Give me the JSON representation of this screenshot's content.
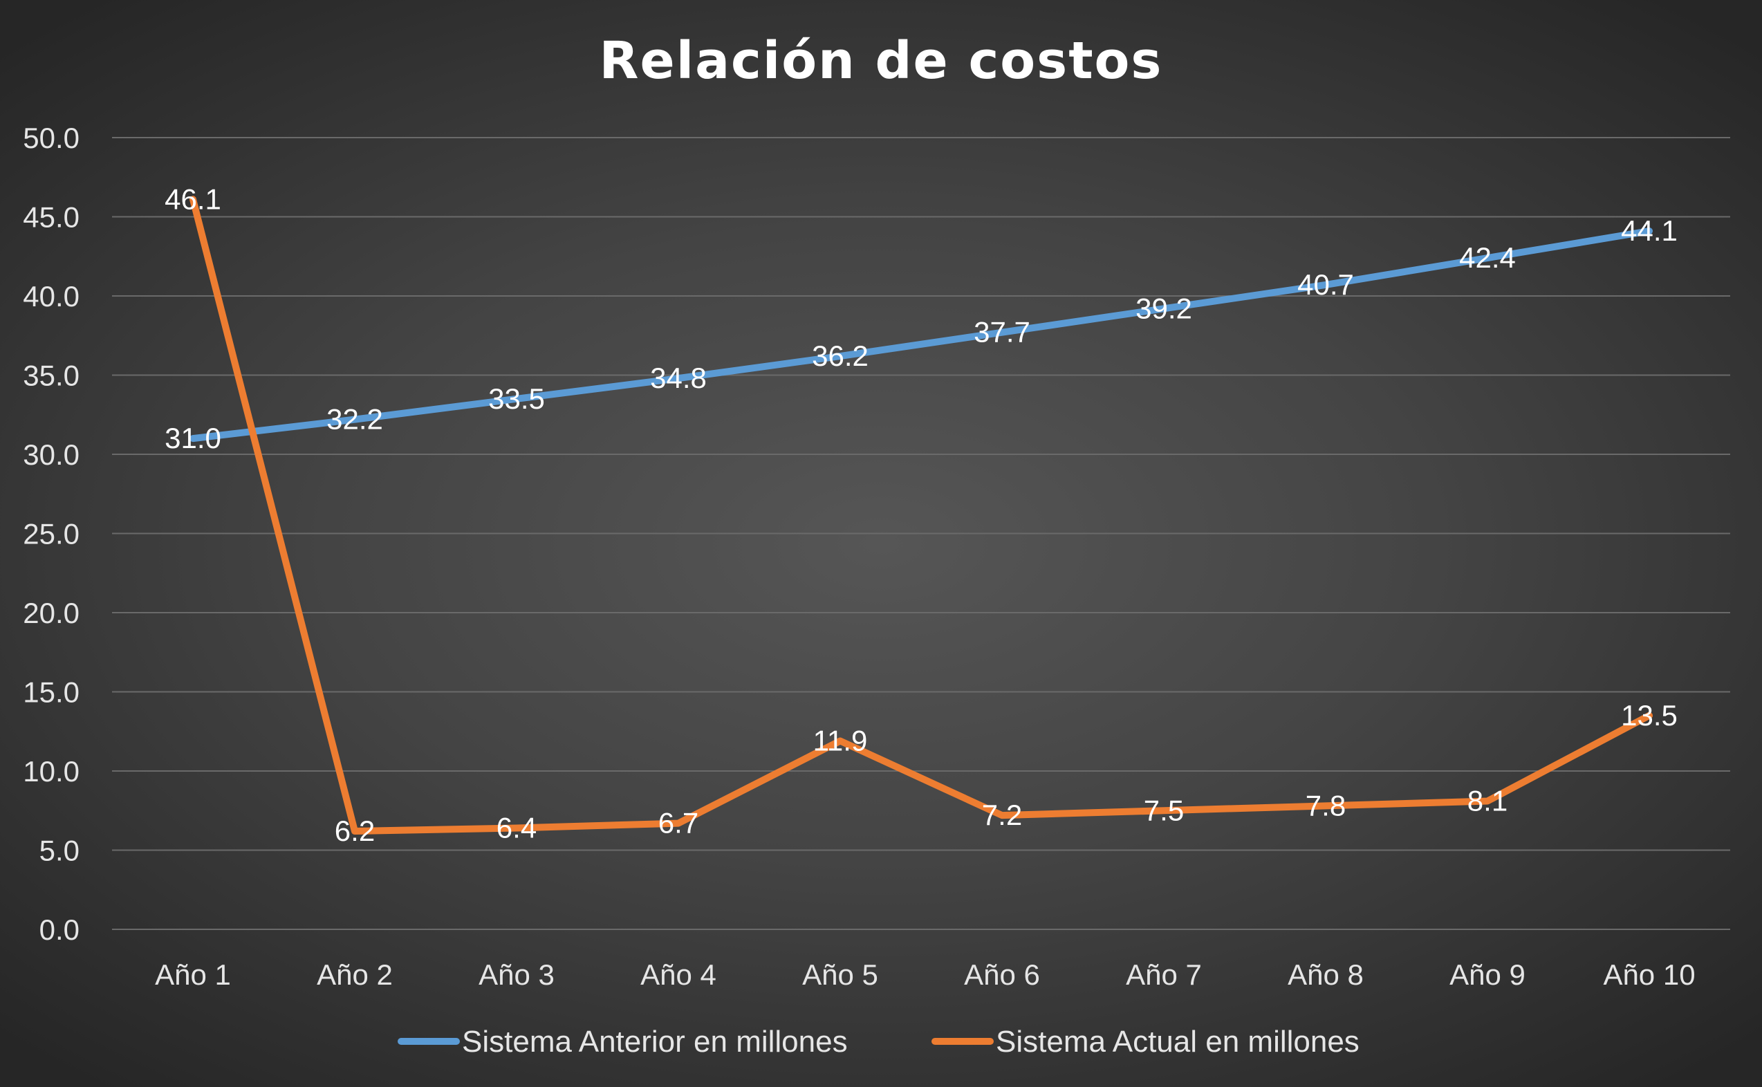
{
  "chart_data": {
    "type": "line",
    "title": "Relación de costos",
    "categories": [
      "Año 1",
      "Año 2",
      "Año 3",
      "Año 4",
      "Año 5",
      "Año 6",
      "Año 7",
      "Año 8",
      "Año 9",
      "Año 10"
    ],
    "y_ticks": [
      "0.0",
      "5.0",
      "10.0",
      "15.0",
      "20.0",
      "25.0",
      "30.0",
      "35.0",
      "40.0",
      "45.0",
      "50.0"
    ],
    "ylim": [
      0,
      50
    ],
    "grid": true,
    "legend_position": "bottom",
    "series": [
      {
        "name": "Sistema Anterior en millones",
        "color": "#5b9bd5",
        "values": [
          31.0,
          32.2,
          33.5,
          34.8,
          36.2,
          37.7,
          39.2,
          40.7,
          42.4,
          44.1
        ],
        "labels": [
          "31.0",
          "32.2",
          "33.5",
          "34.8",
          "36.2",
          "37.7",
          "39.2",
          "40.7",
          "42.4",
          "44.1"
        ]
      },
      {
        "name": "Sistema Actual en millones",
        "color": "#ed7d31",
        "values": [
          46.1,
          6.2,
          6.4,
          6.7,
          11.9,
          7.2,
          7.5,
          7.8,
          8.1,
          13.5
        ],
        "labels": [
          "46.1",
          "6.2",
          "6.4",
          "6.7",
          "11.9",
          "7.2",
          "7.5",
          "7.8",
          "8.1",
          "13.5"
        ]
      }
    ]
  }
}
